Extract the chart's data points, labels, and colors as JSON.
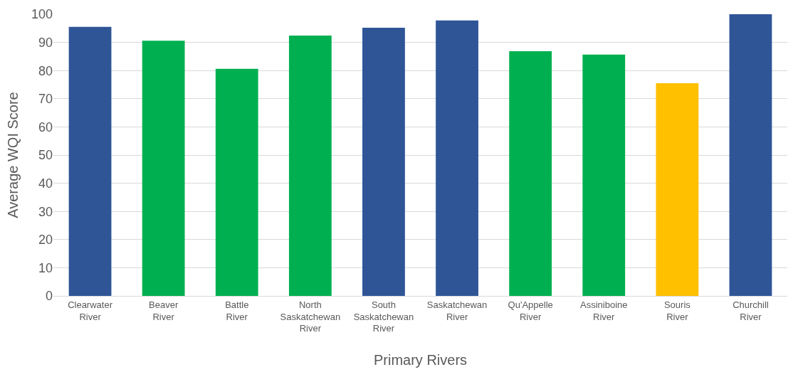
{
  "chart_data": {
    "type": "bar",
    "xlabel": "Primary Rivers",
    "ylabel": "Average WQI Score",
    "categories": [
      "Clearwater River",
      "Beaver River",
      "Battle River",
      "North Saskatchewan River",
      "South Saskatchewan River",
      "Saskatchewan River",
      "Qu'Appelle River",
      "Assiniboine River",
      "Souris River",
      "Churchill River"
    ],
    "values": [
      95.5,
      90.6,
      80.6,
      92.4,
      95.2,
      97.8,
      86.9,
      85.7,
      75.5,
      100
    ],
    "colors": [
      "#2f5597",
      "#00b050",
      "#00b050",
      "#00b050",
      "#2f5597",
      "#2f5597",
      "#00b050",
      "#00b050",
      "#ffc000",
      "#2f5597"
    ],
    "ylim": [
      0,
      100
    ],
    "yticks": [
      0,
      10,
      20,
      30,
      40,
      50,
      60,
      70,
      80,
      90,
      100
    ],
    "grid": "y"
  }
}
